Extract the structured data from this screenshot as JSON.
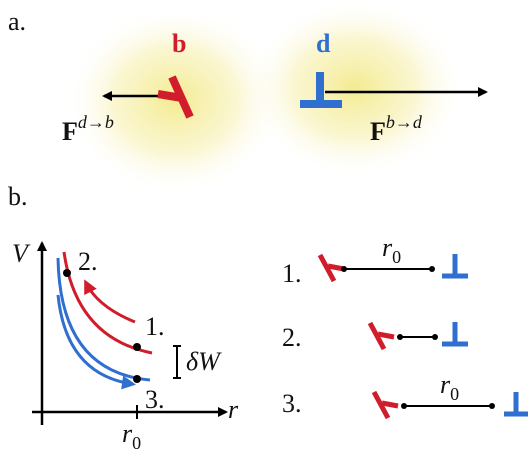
{
  "panel_a": {
    "label": "a.",
    "dislocation_b": {
      "label": "b"
    },
    "dislocation_d": {
      "label": "d"
    },
    "force_on_b": {
      "base": "F",
      "superscript": "d→b"
    },
    "force_on_d": {
      "base": "F",
      "superscript": "b→d"
    }
  },
  "panel_b": {
    "label": "b.",
    "y_axis_label": "V",
    "x_axis_label": "r",
    "x_tick": {
      "base": "r",
      "subscript": "0"
    },
    "points": [
      {
        "label": "1."
      },
      {
        "label": "2."
      },
      {
        "label": "3."
      }
    ],
    "energy_gap_label": "δW",
    "configurations": [
      {
        "label": "1.",
        "distance": {
          "base": "r",
          "subscript": "0"
        }
      },
      {
        "label": "2."
      },
      {
        "label": "3.",
        "distance": {
          "base": "r",
          "subscript": "0"
        }
      }
    ]
  }
}
